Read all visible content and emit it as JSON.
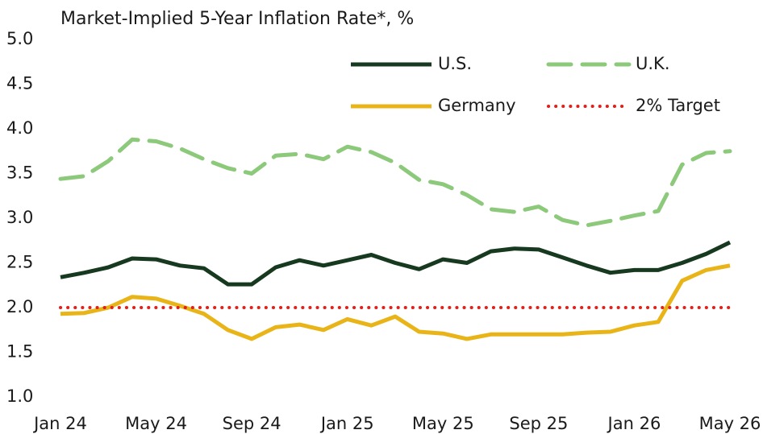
{
  "chart_data": {
    "type": "line",
    "title": "Market-Implied 5-Year Inflation Rate*, %",
    "categories": [
      "Jan 24",
      null,
      null,
      null,
      "May 24",
      null,
      null,
      null,
      "Sep 24",
      null,
      null,
      null,
      "Jan 25",
      null,
      null,
      null,
      "May 25",
      null,
      null,
      null,
      "Sep 25",
      null,
      null,
      null,
      "Jan 26",
      null,
      null,
      null,
      "May 26"
    ],
    "series": [
      {
        "name": "U.S.",
        "color": "#17391f",
        "dash": "solid",
        "values": [
          2.34,
          2.39,
          2.45,
          2.55,
          2.54,
          2.47,
          2.44,
          2.26,
          2.26,
          2.45,
          2.53,
          2.47,
          2.53,
          2.59,
          2.5,
          2.43,
          2.54,
          2.5,
          2.63,
          2.66,
          2.65,
          2.56,
          2.47,
          2.39,
          2.42,
          2.42,
          2.5,
          2.6,
          2.73
        ]
      },
      {
        "name": "U.K.",
        "color": "#8cc97a",
        "dash": "dash",
        "values": [
          3.44,
          3.47,
          3.64,
          3.88,
          3.86,
          3.78,
          3.66,
          3.56,
          3.5,
          3.7,
          3.72,
          3.66,
          3.8,
          3.74,
          3.62,
          3.43,
          3.38,
          3.26,
          3.1,
          3.07,
          3.13,
          2.98,
          2.92,
          2.97,
          3.03,
          3.08,
          3.6,
          3.73,
          3.75
        ]
      },
      {
        "name": "Germany",
        "color": "#e8b417",
        "dash": "solid",
        "values": [
          1.93,
          1.94,
          2.0,
          2.12,
          2.1,
          2.02,
          1.93,
          1.75,
          1.65,
          1.78,
          1.81,
          1.75,
          1.87,
          1.8,
          1.9,
          1.73,
          1.71,
          1.65,
          1.7,
          1.7,
          1.7,
          1.7,
          1.72,
          1.73,
          1.8,
          1.84,
          2.3,
          2.42,
          2.47
        ]
      },
      {
        "name": "2% Target",
        "color": "#e0201b",
        "dash": "dot",
        "values": [
          2,
          2,
          2,
          2,
          2,
          2,
          2,
          2,
          2,
          2,
          2,
          2,
          2,
          2,
          2,
          2,
          2,
          2,
          2,
          2,
          2,
          2,
          2,
          2,
          2,
          2,
          2,
          2,
          2
        ]
      }
    ],
    "ylim": [
      1,
      5
    ],
    "yticks": [
      {
        "value": 1,
        "label": "1.0"
      },
      {
        "value": 1.5,
        "label": "1.5"
      },
      {
        "value": 2,
        "label": "2.0"
      },
      {
        "value": 2.5,
        "label": "2.5"
      },
      {
        "value": 3,
        "label": "3.0"
      },
      {
        "value": 3.5,
        "label": "3.5"
      },
      {
        "value": 4,
        "label": "4.0"
      },
      {
        "value": 4.5,
        "label": "4.5"
      },
      {
        "value": 5,
        "label": "5.0"
      }
    ],
    "grid": false,
    "legend": "upper right"
  }
}
